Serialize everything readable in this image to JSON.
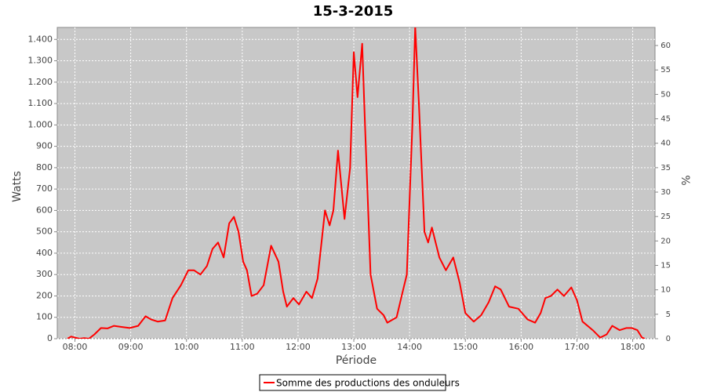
{
  "chart_data": {
    "type": "line",
    "title": "15-3-2015",
    "xlabel": "Période",
    "ylabel": "Watts",
    "y2label": "%",
    "x": [
      "07:52",
      "07:56",
      "08:00",
      "08:05",
      "08:10",
      "08:15",
      "08:21",
      "08:28",
      "08:35",
      "08:42",
      "08:50",
      "08:59",
      "09:08",
      "09:16",
      "09:22",
      "09:29",
      "09:37",
      "09:45",
      "09:54",
      "10:02",
      "10:08",
      "10:15",
      "10:22",
      "10:28",
      "10:34",
      "10:40",
      "10:46",
      "10:51",
      "10:56",
      "11:01",
      "11:05",
      "11:10",
      "11:16",
      "11:23",
      "11:31",
      "11:39",
      "11:44",
      "11:48",
      "11:55",
      "12:01",
      "12:09",
      "12:15",
      "12:21",
      "12:29",
      "12:34",
      "12:38",
      "12:43",
      "12:50",
      "12:56",
      "13:00",
      "13:04",
      "13:09",
      "13:12",
      "13:18",
      "13:25",
      "13:32",
      "13:36",
      "13:46",
      "13:52",
      "13:57",
      "14:03",
      "14:06",
      "14:10",
      "14:16",
      "14:20",
      "14:24",
      "14:28",
      "14:32",
      "14:39",
      "14:47",
      "14:54",
      "15:00",
      "15:09",
      "15:17",
      "15:25",
      "15:32",
      "15:38",
      "15:47",
      "15:57",
      "16:07",
      "16:15",
      "16:21",
      "16:26",
      "16:32",
      "16:39",
      "16:46",
      "16:54",
      "17:00",
      "17:06",
      "17:17",
      "17:25",
      "17:32",
      "17:38",
      "17:46",
      "17:53",
      "17:59",
      "18:05",
      "18:10",
      "18:13"
    ],
    "series": [
      {
        "name": "Somme des productions des onduleurs",
        "color": "#ff0000",
        "values": [
          0,
          10,
          5,
          0,
          3,
          0,
          20,
          50,
          48,
          60,
          55,
          50,
          60,
          105,
          90,
          80,
          85,
          190,
          250,
          320,
          320,
          300,
          340,
          420,
          450,
          380,
          540,
          570,
          500,
          360,
          320,
          200,
          210,
          250,
          435,
          360,
          220,
          150,
          190,
          160,
          220,
          190,
          280,
          600,
          530,
          600,
          880,
          560,
          800,
          1340,
          1130,
          1380,
          1000,
          300,
          140,
          110,
          75,
          100,
          210,
          300,
          1000,
          1460,
          1100,
          500,
          450,
          520,
          450,
          380,
          320,
          380,
          260,
          120,
          80,
          110,
          170,
          245,
          230,
          150,
          140,
          90,
          75,
          120,
          190,
          200,
          230,
          200,
          240,
          180,
          80,
          40,
          5,
          20,
          60,
          40,
          50,
          50,
          40,
          5,
          0
        ]
      }
    ],
    "xlim": [
      "07:41",
      "18:24"
    ],
    "xticks": [
      "08:00",
      "09:00",
      "10:00",
      "11:00",
      "12:00",
      "13:00",
      "14:00",
      "15:00",
      "16:00",
      "17:00",
      "18:00"
    ],
    "ylim": [
      0,
      1456
    ],
    "yticks": [
      0,
      100,
      200,
      300,
      400,
      500,
      600,
      700,
      800,
      900,
      {
        "value": 1000,
        "label": "1.000"
      },
      {
        "value": 1100,
        "label": "1.100"
      },
      {
        "value": 1200,
        "label": "1.200"
      },
      {
        "value": 1300,
        "label": "1.300"
      },
      {
        "value": 1400,
        "label": "1.400"
      }
    ],
    "y2lim": [
      0,
      63.7
    ],
    "y2ticks": [
      0,
      5,
      10,
      15,
      20,
      25,
      30,
      35,
      40,
      45,
      50,
      55,
      60
    ],
    "grid": true,
    "legend": "bottom"
  }
}
